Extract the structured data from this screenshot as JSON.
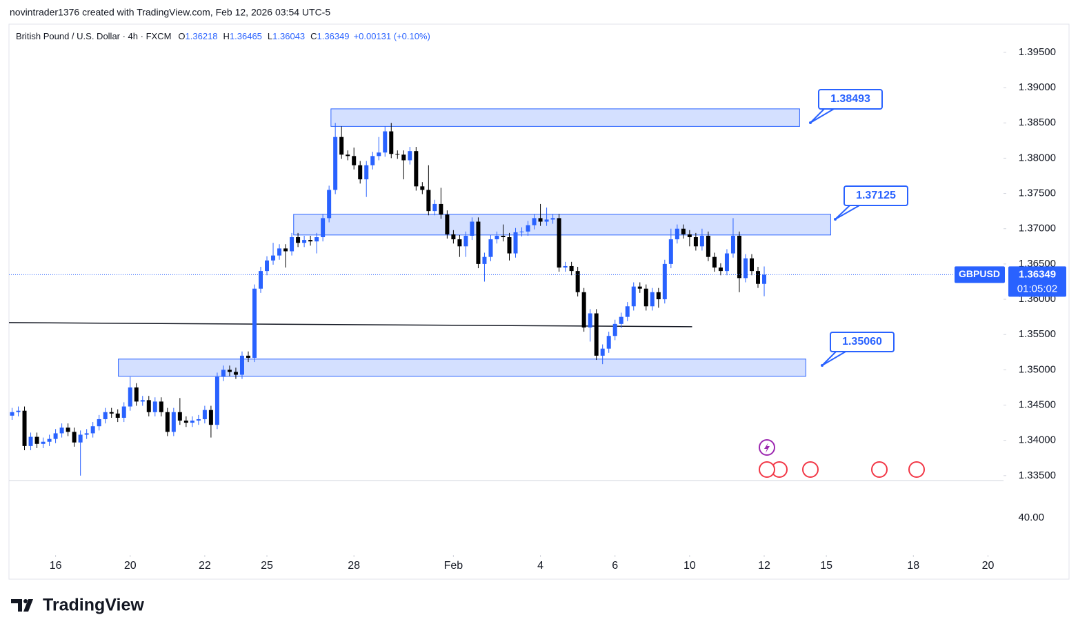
{
  "header": "novintrader1376 created with TradingView.com, Feb 12, 2026 03:54 UTC-5",
  "brand": "TradingView",
  "chart_data": {
    "type": "candlestick",
    "title": "British Pound / U.S. Dollar · 4h · FXCM",
    "ohlc_legend": [
      {
        "label": "O",
        "value": "1.36218"
      },
      {
        "label": "H",
        "value": "1.36465"
      },
      {
        "label": "L",
        "value": "1.36043"
      },
      {
        "label": "C",
        "value": "1.36349"
      }
    ],
    "change": "+0.00131 (+0.10%)",
    "symbol": "GBPUSD",
    "last_price": 1.36349,
    "countdown": "01:05:02",
    "lower_pane_label": "40.00",
    "up_color": "#2962ff",
    "down_color": "#000000",
    "open": [
      1.3435,
      1.344,
      1.3442,
      1.3392,
      1.3405,
      1.3395,
      1.3398,
      1.3402,
      1.341,
      1.3418,
      1.3412,
      1.3397,
      1.3408,
      1.341,
      1.342,
      1.343,
      1.344,
      1.3438,
      1.3432,
      1.3448,
      1.3475,
      1.3455,
      1.3457,
      1.344,
      1.3455,
      1.344,
      1.3412,
      1.344,
      1.3428,
      1.3425,
      1.3428,
      1.343,
      1.3443,
      1.3422,
      1.349,
      1.35,
      1.3497,
      1.3493,
      1.352,
      1.3517,
      1.3615,
      1.364,
      1.3655,
      1.3662,
      1.3672,
      1.3668,
      1.3688,
      1.368,
      1.3684,
      1.3682,
      1.3688,
      1.3715,
      1.3755,
      1.383,
      1.3805,
      1.3803,
      1.379,
      1.377,
      1.379,
      1.3803,
      1.3808,
      1.3838,
      1.3806,
      1.3805,
      1.3797,
      1.381,
      1.376,
      1.3755,
      1.3725,
      1.3735,
      1.372,
      1.3692,
      1.3685,
      1.3675,
      1.369,
      1.371,
      1.365,
      1.366,
      1.3685,
      1.369,
      1.3688,
      1.3665,
      1.3695,
      1.3696,
      1.3705,
      1.3715,
      1.371,
      1.3713,
      1.3715,
      1.3645,
      1.3647,
      1.364,
      1.361,
      1.356,
      1.358,
      1.352,
      1.353,
      1.3548,
      1.3565,
      1.3575,
      1.359,
      1.3618,
      1.3615,
      1.359,
      1.361,
      1.36,
      1.365,
      1.3685,
      1.37,
      1.3692,
      1.3688,
      1.3675,
      1.369,
      1.366,
      1.3645,
      1.364,
      1.3665,
      1.369,
      1.363,
      1.3658,
      1.364,
      1.36218
    ],
    "high": [
      1.3446,
      1.3448,
      1.3448,
      1.3411,
      1.3411,
      1.3404,
      1.3408,
      1.3416,
      1.3424,
      1.3424,
      1.3418,
      1.3414,
      1.3416,
      1.3426,
      1.3436,
      1.3446,
      1.3446,
      1.3444,
      1.3454,
      1.349,
      1.3481,
      1.3463,
      1.3463,
      1.3461,
      1.3461,
      1.3446,
      1.3446,
      1.346,
      1.3434,
      1.3434,
      1.3436,
      1.3449,
      1.3449,
      1.3496,
      1.3506,
      1.3506,
      1.3503,
      1.3526,
      1.3526,
      1.3621,
      1.3646,
      1.3661,
      1.368,
      1.3678,
      1.3678,
      1.3694,
      1.3694,
      1.369,
      1.369,
      1.3694,
      1.3721,
      1.3761,
      1.385,
      1.3845,
      1.3811,
      1.3815,
      1.3796,
      1.3796,
      1.3809,
      1.383,
      1.3845,
      1.385,
      1.3811,
      1.3811,
      1.3816,
      1.3816,
      1.3766,
      1.379,
      1.3741,
      1.3758,
      1.3726,
      1.3698,
      1.3691,
      1.3696,
      1.3716,
      1.3716,
      1.3666,
      1.3691,
      1.3696,
      1.3706,
      1.3694,
      1.3701,
      1.3702,
      1.3711,
      1.3721,
      1.3735,
      1.373,
      1.3721,
      1.3721,
      1.3653,
      1.3653,
      1.3646,
      1.3616,
      1.3586,
      1.3586,
      1.3536,
      1.3554,
      1.3571,
      1.3581,
      1.3596,
      1.3624,
      1.3624,
      1.3621,
      1.3616,
      1.3616,
      1.3656,
      1.37,
      1.3706,
      1.3706,
      1.3698,
      1.3694,
      1.37,
      1.3696,
      1.3666,
      1.3651,
      1.3671,
      1.3715,
      1.3696,
      1.3664,
      1.3664,
      1.3646,
      1.36465
    ],
    "low": [
      1.3429,
      1.3434,
      1.3386,
      1.3386,
      1.3389,
      1.3389,
      1.3392,
      1.3396,
      1.3404,
      1.3406,
      1.3391,
      1.335,
      1.3402,
      1.3404,
      1.3414,
      1.3424,
      1.3432,
      1.3426,
      1.3426,
      1.3442,
      1.3449,
      1.3449,
      1.3434,
      1.3434,
      1.3434,
      1.3406,
      1.3406,
      1.3422,
      1.3419,
      1.3419,
      1.3422,
      1.3424,
      1.3404,
      1.3416,
      1.3484,
      1.3491,
      1.3487,
      1.3487,
      1.3511,
      1.3511,
      1.3609,
      1.3634,
      1.3649,
      1.3656,
      1.3645,
      1.3662,
      1.3674,
      1.3674,
      1.3676,
      1.3665,
      1.3682,
      1.3709,
      1.3749,
      1.3799,
      1.3797,
      1.3784,
      1.3764,
      1.3745,
      1.3784,
      1.3797,
      1.3802,
      1.38,
      1.3799,
      1.377,
      1.3791,
      1.3754,
      1.3749,
      1.3719,
      1.3719,
      1.3714,
      1.3686,
      1.3679,
      1.366,
      1.366,
      1.3684,
      1.3644,
      1.3625,
      1.3654,
      1.3679,
      1.3682,
      1.3655,
      1.3659,
      1.3689,
      1.369,
      1.3699,
      1.3704,
      1.3704,
      1.3707,
      1.3639,
      1.3639,
      1.3634,
      1.3604,
      1.3554,
      1.354,
      1.3514,
      1.3508,
      1.3524,
      1.3542,
      1.3559,
      1.3569,
      1.3584,
      1.3609,
      1.3584,
      1.3584,
      1.3588,
      1.3594,
      1.3644,
      1.3679,
      1.3686,
      1.3675,
      1.3669,
      1.3669,
      1.3654,
      1.3639,
      1.3634,
      1.3634,
      1.3659,
      1.361,
      1.3624,
      1.3634,
      1.3616,
      1.36043
    ],
    "close": [
      1.344,
      1.3442,
      1.3392,
      1.3405,
      1.3395,
      1.3398,
      1.3402,
      1.341,
      1.3418,
      1.3412,
      1.3397,
      1.3408,
      1.341,
      1.342,
      1.343,
      1.344,
      1.3438,
      1.3432,
      1.3448,
      1.3475,
      1.3455,
      1.3457,
      1.344,
      1.3455,
      1.344,
      1.3412,
      1.344,
      1.3428,
      1.3425,
      1.3428,
      1.343,
      1.3443,
      1.3422,
      1.349,
      1.35,
      1.3497,
      1.3493,
      1.352,
      1.3517,
      1.3615,
      1.364,
      1.3655,
      1.3662,
      1.3672,
      1.3668,
      1.3688,
      1.368,
      1.3684,
      1.3682,
      1.3688,
      1.3715,
      1.3755,
      1.383,
      1.3805,
      1.3803,
      1.379,
      1.377,
      1.379,
      1.3803,
      1.3808,
      1.3838,
      1.3806,
      1.3805,
      1.3797,
      1.381,
      1.376,
      1.3755,
      1.3725,
      1.3735,
      1.372,
      1.3692,
      1.3685,
      1.3675,
      1.369,
      1.371,
      1.365,
      1.366,
      1.3685,
      1.369,
      1.3688,
      1.3665,
      1.3695,
      1.3696,
      1.3705,
      1.3715,
      1.371,
      1.3713,
      1.3715,
      1.3645,
      1.3647,
      1.364,
      1.361,
      1.356,
      1.358,
      1.352,
      1.353,
      1.3548,
      1.3565,
      1.3575,
      1.359,
      1.3618,
      1.3615,
      1.359,
      1.361,
      1.36,
      1.365,
      1.3685,
      1.37,
      1.3692,
      1.3688,
      1.3675,
      1.369,
      1.366,
      1.3645,
      1.364,
      1.3665,
      1.369,
      1.363,
      1.3658,
      1.364,
      1.36218,
      1.36349
    ],
    "xlim": [
      -0.5,
      159.5
    ],
    "xticks": [
      {
        "value": 7,
        "label": "16"
      },
      {
        "value": 19,
        "label": "20"
      },
      {
        "value": 31,
        "label": "22"
      },
      {
        "value": 41,
        "label": "25"
      },
      {
        "value": 55,
        "label": "28"
      },
      {
        "value": 71,
        "label": "Feb"
      },
      {
        "value": 85,
        "label": "4"
      },
      {
        "value": 97,
        "label": "6"
      },
      {
        "value": 109,
        "label": "10"
      },
      {
        "value": 121,
        "label": "12"
      },
      {
        "value": 131,
        "label": "15"
      },
      {
        "value": 145,
        "label": "18"
      },
      {
        "value": 157,
        "label": "20"
      }
    ],
    "ylim": [
      1.3343,
      1.399
    ],
    "yticks": [
      {
        "value": 1.335,
        "label": "1.33500"
      },
      {
        "value": 1.34,
        "label": "1.34000"
      },
      {
        "value": 1.345,
        "label": "1.34500"
      },
      {
        "value": 1.35,
        "label": "1.35000"
      },
      {
        "value": 1.355,
        "label": "1.35500"
      },
      {
        "value": 1.36,
        "label": "1.36000"
      },
      {
        "value": 1.365,
        "label": "1.36500"
      },
      {
        "value": 1.37,
        "label": "1.37000"
      },
      {
        "value": 1.375,
        "label": "1.37500"
      },
      {
        "value": 1.38,
        "label": "1.38000"
      },
      {
        "value": 1.385,
        "label": "1.38500"
      },
      {
        "value": 1.39,
        "label": "1.39000"
      },
      {
        "value": 1.395,
        "label": "1.39500"
      }
    ],
    "zones": [
      {
        "x": [
          51.3,
          126.7
        ],
        "y": [
          1.3845,
          1.38699
        ],
        "label": "1.38493"
      },
      {
        "x": [
          45.3,
          131.7
        ],
        "y": [
          1.36911,
          1.37204
        ],
        "label": "1.37125"
      },
      {
        "x": [
          17.1,
          127.7
        ],
        "y": [
          1.34908,
          1.35152
        ],
        "label": "1.35060"
      }
    ],
    "trend_line": {
      "x": [
        -0.5,
        109.4
      ],
      "y": [
        1.35669,
        1.35611
      ]
    }
  }
}
